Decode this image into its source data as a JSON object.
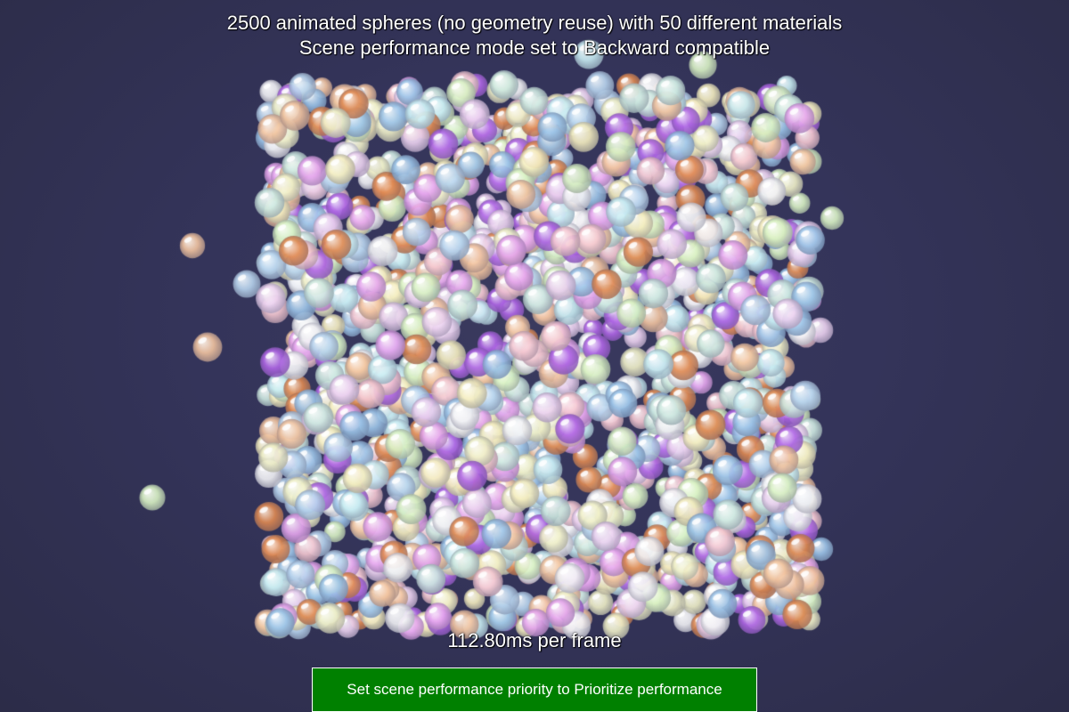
{
  "title": {
    "line1": "2500 animated spheres (no geometry reuse) with 50 different materials",
    "line2": "Scene performance mode set to Backward compatible"
  },
  "stats": {
    "frame_time": "112.80ms per frame"
  },
  "button": {
    "label": "Set scene performance priority to Prioritize performance"
  },
  "colors": {
    "background": "#34345a",
    "button_background": "#008000",
    "button_border": "#ffffff",
    "text": "#ffffff",
    "sphere_palette": [
      "#f2f2f5",
      "#f5c8d2",
      "#d9f2c4",
      "#c8ecf2",
      "#f5eec0",
      "#e6a6ee",
      "#b8d4ee",
      "#f2c4a0",
      "#cde8e0",
      "#ecd2f0",
      "#b066e6",
      "#e08a52",
      "#9cc4e8",
      "#f0f0c8"
    ]
  }
}
